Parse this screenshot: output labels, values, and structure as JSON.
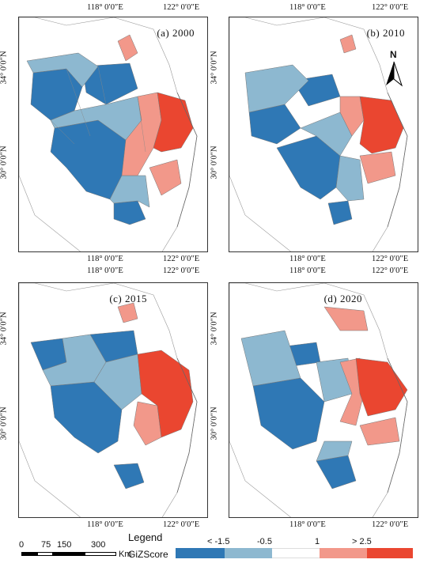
{
  "panels": [
    {
      "label": "(a)  2000"
    },
    {
      "label": "(b)  2010"
    },
    {
      "label": "(c)  2015"
    },
    {
      "label": "(d)  2020"
    }
  ],
  "ticks": {
    "lon_left": "118° 0′0″E",
    "lon_right": "122° 0′0″E",
    "lat_top": "34° 0′0″N",
    "lat_bottom": "30° 0′0″N"
  },
  "north_label": "N",
  "legend": {
    "title": "Legend",
    "name": "GiZScore",
    "labels": [
      "< -1.5",
      "-0.5",
      "1",
      "> 2.5"
    ],
    "colors": [
      "#2f78b5",
      "#8db8d0",
      "#ffffff",
      "#f2988a",
      "#ea4630"
    ]
  },
  "scalebar": {
    "labels": [
      "0",
      "75",
      "150",
      "300"
    ],
    "unit": "Km"
  }
}
